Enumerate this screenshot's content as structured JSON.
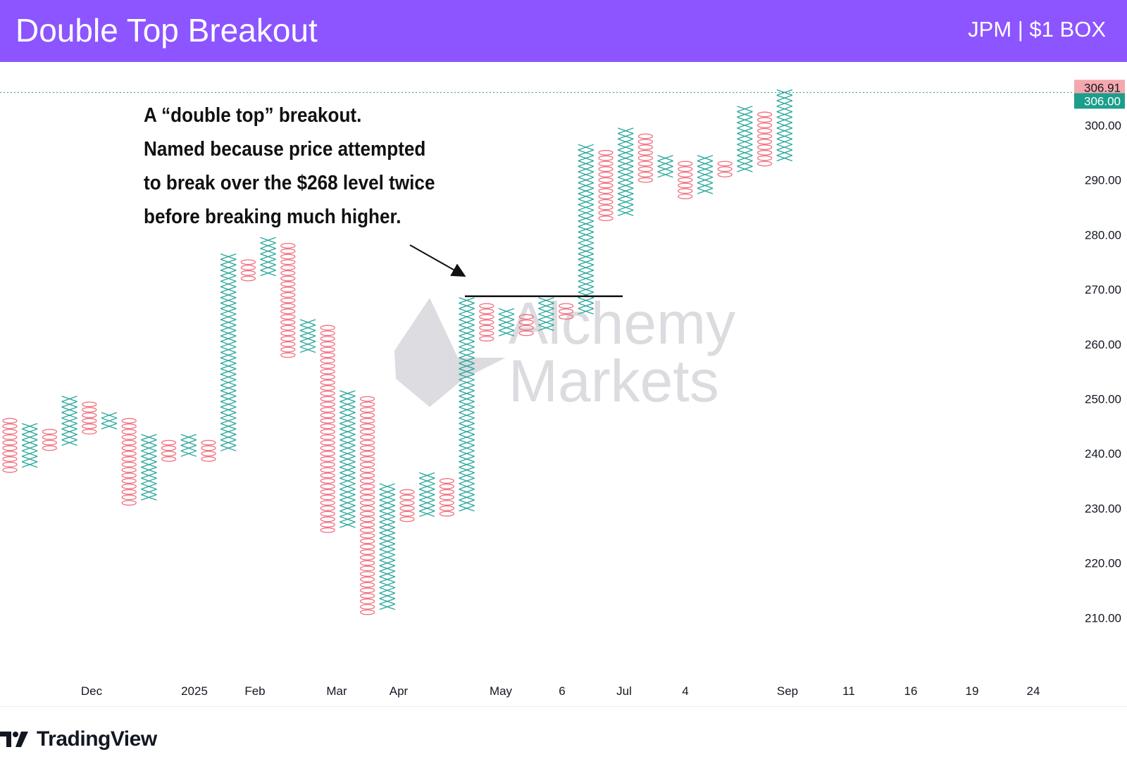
{
  "header": {
    "title": "Double Top Breakout",
    "symbol": "JPM | $1 BOX"
  },
  "annotation": {
    "lines": [
      "A “double top” breakout.",
      "Named because price attempted",
      "to break over the $268 level twice",
      "before breaking much higher."
    ]
  },
  "watermark": {
    "line1": "Alchemy",
    "line2": "Markets"
  },
  "brand": {
    "name": "TradingView"
  },
  "colors": {
    "header_bg": "#8c55ff",
    "x_color": "#26a69a",
    "o_color": "#f26d7d",
    "last_price_bg": "#1b9e8c",
    "high_price_bg": "#f4a8ad"
  },
  "chart_data": {
    "type": "point-and-figure",
    "box_size": 1,
    "ylim": [
      203,
      317
    ],
    "y_ticks": [
      "300.00",
      "290.00",
      "280.00",
      "270.00",
      "260.00",
      "250.00",
      "240.00",
      "230.00",
      "220.00",
      "210.00"
    ],
    "x_ticks": [
      "Dec",
      "2025",
      "Feb",
      "Mar",
      "Apr",
      "May",
      "6",
      "Jul",
      "4",
      "Sep",
      "11",
      "16",
      "19",
      "24"
    ],
    "price_labels": {
      "high": "306.91",
      "last": "306.00"
    },
    "resistance_level": 268,
    "columns": [
      {
        "type": "O",
        "high": 246,
        "low": 237
      },
      {
        "type": "X",
        "low": 238,
        "high": 245
      },
      {
        "type": "O",
        "high": 244,
        "low": 241
      },
      {
        "type": "X",
        "low": 242,
        "high": 250
      },
      {
        "type": "O",
        "high": 249,
        "low": 244
      },
      {
        "type": "X",
        "low": 245,
        "high": 247
      },
      {
        "type": "O",
        "high": 246,
        "low": 231
      },
      {
        "type": "X",
        "low": 232,
        "high": 243
      },
      {
        "type": "O",
        "high": 242,
        "low": 239
      },
      {
        "type": "X",
        "low": 240,
        "high": 243
      },
      {
        "type": "O",
        "high": 242,
        "low": 239
      },
      {
        "type": "X",
        "low": 241,
        "high": 276
      },
      {
        "type": "O",
        "high": 275,
        "low": 272
      },
      {
        "type": "X",
        "low": 273,
        "high": 279
      },
      {
        "type": "O",
        "high": 278,
        "low": 258
      },
      {
        "type": "X",
        "low": 259,
        "high": 264
      },
      {
        "type": "O",
        "high": 263,
        "low": 226
      },
      {
        "type": "X",
        "low": 227,
        "high": 251
      },
      {
        "type": "O",
        "high": 250,
        "low": 211
      },
      {
        "type": "X",
        "low": 212,
        "high": 234
      },
      {
        "type": "O",
        "high": 233,
        "low": 228
      },
      {
        "type": "X",
        "low": 229,
        "high": 236
      },
      {
        "type": "O",
        "high": 235,
        "low": 229
      },
      {
        "type": "X",
        "low": 230,
        "high": 268
      },
      {
        "type": "O",
        "high": 267,
        "low": 261
      },
      {
        "type": "X",
        "low": 262,
        "high": 266
      },
      {
        "type": "O",
        "high": 265,
        "low": 262
      },
      {
        "type": "X",
        "low": 263,
        "high": 268
      },
      {
        "type": "O",
        "high": 267,
        "low": 265
      },
      {
        "type": "X",
        "low": 266,
        "high": 296
      },
      {
        "type": "O",
        "high": 295,
        "low": 283
      },
      {
        "type": "X",
        "low": 284,
        "high": 299
      },
      {
        "type": "O",
        "high": 298,
        "low": 290
      },
      {
        "type": "X",
        "low": 291,
        "high": 294
      },
      {
        "type": "O",
        "high": 293,
        "low": 287
      },
      {
        "type": "X",
        "low": 288,
        "high": 294
      },
      {
        "type": "O",
        "high": 293,
        "low": 291
      },
      {
        "type": "X",
        "low": 292,
        "high": 303
      },
      {
        "type": "O",
        "high": 302,
        "low": 293
      },
      {
        "type": "X",
        "low": 294,
        "high": 306
      }
    ]
  }
}
